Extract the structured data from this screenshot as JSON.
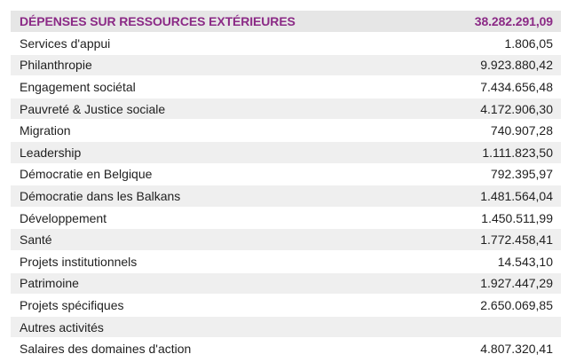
{
  "header": {
    "label": "DÉPENSES SUR RESSOURCES EXTÉRIEURES",
    "value": "38.282.291,09"
  },
  "rows": [
    {
      "label": "Services d'appui",
      "value": "1.806,05"
    },
    {
      "label": "Philanthropie",
      "value": "9.923.880,42"
    },
    {
      "label": "Engagement sociétal",
      "value": "7.434.656,48"
    },
    {
      "label": "Pauvreté & Justice sociale",
      "value": "4.172.906,30"
    },
    {
      "label": "Migration",
      "value": "740.907,28"
    },
    {
      "label": "Leadership",
      "value": "1.111.823,50"
    },
    {
      "label": "Démocratie en Belgique",
      "value": "792.395,97"
    },
    {
      "label": "Démocratie dans les Balkans",
      "value": "1.481.564,04"
    },
    {
      "label": "Développement",
      "value": "1.450.511,99"
    },
    {
      "label": "Santé",
      "value": "1.772.458,41"
    },
    {
      "label": "Projets institutionnels",
      "value": "14.543,10"
    },
    {
      "label": "Patrimoine",
      "value": "1.927.447,29"
    },
    {
      "label": "Projets spécifiques",
      "value": "2.650.069,85"
    },
    {
      "label": "Autres activités",
      "value": ""
    },
    {
      "label": "Salaires des domaines d'action",
      "value": "4.807.320,41"
    }
  ],
  "colors": {
    "header_text": "#8b2a86",
    "header_bg": "#e6e6e6",
    "stripe_bg": "#efefef"
  }
}
